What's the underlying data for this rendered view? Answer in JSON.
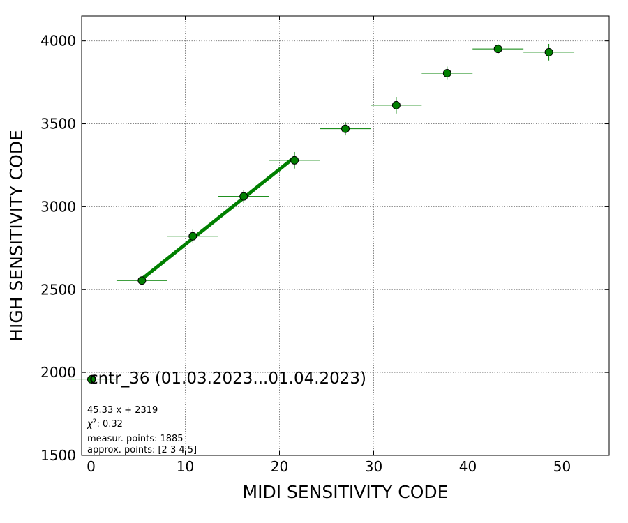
{
  "chart_data": {
    "type": "scatter",
    "xlabel": "MIDI SENSITIVITY CODE",
    "ylabel": "HIGH SENSITIVITY CODE",
    "xlim": [
      -1,
      55
    ],
    "ylim": [
      1500,
      4150
    ],
    "x_ticks": [
      0,
      10,
      20,
      30,
      40,
      50
    ],
    "y_ticks": [
      1500,
      2000,
      2500,
      3000,
      3500,
      4000
    ],
    "grid": true,
    "marker_color": "#008000",
    "fit_color": "#008000",
    "series": [
      {
        "name": "cntr_36 (01.03.2023...01.04.2023)",
        "points": [
          {
            "x": 0.1,
            "y": 1960,
            "xerr": 2.7,
            "yerr": 15
          },
          {
            "x": 5.4,
            "y": 2555,
            "xerr": 2.7,
            "yerr": 25
          },
          {
            "x": 10.8,
            "y": 2822,
            "xerr": 2.7,
            "yerr": 40
          },
          {
            "x": 16.2,
            "y": 3062,
            "xerr": 2.7,
            "yerr": 40
          },
          {
            "x": 21.6,
            "y": 3280,
            "xerr": 2.7,
            "yerr": 50
          },
          {
            "x": 27.0,
            "y": 3470,
            "xerr": 2.7,
            "yerr": 40
          },
          {
            "x": 32.4,
            "y": 3612,
            "xerr": 2.7,
            "yerr": 50
          },
          {
            "x": 37.8,
            "y": 3805,
            "xerr": 2.7,
            "yerr": 40
          },
          {
            "x": 43.2,
            "y": 3952,
            "xerr": 2.7,
            "yerr": 30
          },
          {
            "x": 48.6,
            "y": 3932,
            "xerr": 2.7,
            "yerr": 50
          }
        ]
      }
    ],
    "fit": {
      "slope": 45.33,
      "intercept": 2319,
      "x_from": 5.4,
      "x_to": 21.6
    },
    "legend_label": "cntr_36 (01.03.2023...01.04.2023)",
    "annotations": {
      "equation": "45.33 x + 2319",
      "chi2": ": 0.32",
      "chi2_symbol": "χ",
      "chi2_exp": "2",
      "measur_points": "measur. points: 1885",
      "approx_points": "approx. points: [2 3 4 5]"
    }
  }
}
